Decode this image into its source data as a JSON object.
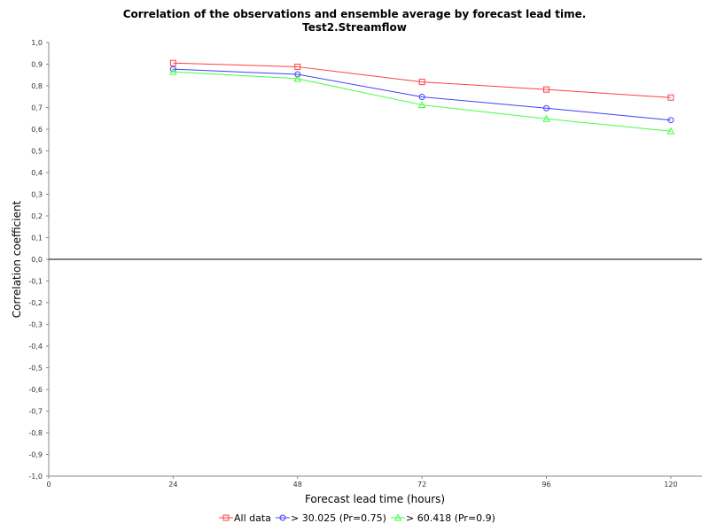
{
  "chart_data": {
    "type": "line",
    "title": "Correlation of the observations and ensemble average by forecast lead time.",
    "subtitle": "Test2.Streamflow",
    "xlabel": "Forecast lead time (hours)",
    "ylabel": "Correlation coefficient",
    "xlim": [
      0,
      126
    ],
    "ylim": [
      -1.0,
      1.0
    ],
    "x_ticks": [
      0,
      24,
      48,
      72,
      96,
      120
    ],
    "y_ticks": [
      -1.0,
      -0.9,
      -0.8,
      -0.7,
      -0.6,
      -0.5,
      -0.4,
      -0.3,
      -0.2,
      -0.1,
      0.0,
      0.1,
      0.2,
      0.3,
      0.4,
      0.5,
      0.6,
      0.7,
      0.8,
      0.9,
      1.0
    ],
    "y_tick_labels": [
      "-1,0",
      "-0,9",
      "-0,8",
      "-0,7",
      "-0,6",
      "-0,5",
      "-0,4",
      "-0,3",
      "-0,2",
      "-0,1",
      "0,0",
      "0,1",
      "0,2",
      "0,3",
      "0,4",
      "0,5",
      "0,6",
      "0,7",
      "0,8",
      "0,9",
      "1,0"
    ],
    "grid": false,
    "zero_line": true,
    "legend_position": "bottom",
    "x": [
      24,
      48,
      72,
      96,
      120
    ],
    "series": [
      {
        "name": "All data",
        "color": "#ff4040",
        "marker": "square",
        "values": [
          0.905,
          0.888,
          0.818,
          0.783,
          0.746
        ]
      },
      {
        "name": "> 30.025 (Pr=0.75)",
        "color": "#4040ff",
        "marker": "circle",
        "values": [
          0.877,
          0.853,
          0.749,
          0.697,
          0.642
        ]
      },
      {
        "name": "> 60.418 (Pr=0.9)",
        "color": "#40ff40",
        "marker": "triangle",
        "values": [
          0.865,
          0.833,
          0.712,
          0.648,
          0.591
        ]
      }
    ]
  }
}
